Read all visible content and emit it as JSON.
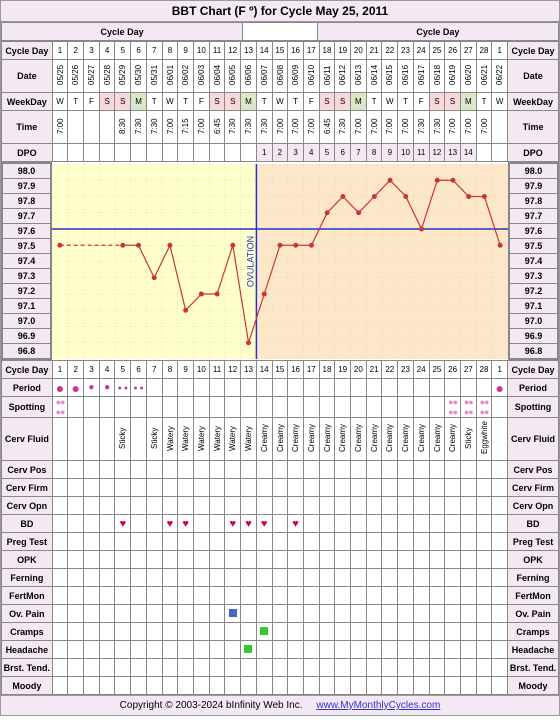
{
  "title": "BBT Chart (F º) for Cycle May 25, 2011",
  "labels": {
    "cycleDay": "Cycle Day",
    "date": "Date",
    "weekday": "WeekDay",
    "time": "Time",
    "dpo": "DPO",
    "period": "Period",
    "spotting": "Spotting",
    "cervFluid": "Cerv Fluid",
    "cervPos": "Cerv Pos",
    "cervFirm": "Cerv Firm",
    "cervOpn": "Cerv Opn",
    "bd": "BD",
    "pregTest": "Preg Test",
    "opk": "OPK",
    "ferning": "Ferning",
    "fertMon": "FertMon",
    "ovPain": "Ov. Pain",
    "cramps": "Cramps",
    "headache": "Headache",
    "brstTend": "Brst. Tend.",
    "moody": "Moody"
  },
  "cycleDays": [
    1,
    2,
    3,
    4,
    5,
    6,
    7,
    8,
    9,
    10,
    11,
    12,
    13,
    14,
    15,
    16,
    17,
    18,
    19,
    20,
    21,
    22,
    23,
    24,
    25,
    26,
    27,
    28,
    1
  ],
  "dates": [
    "05/25",
    "05/26",
    "05/27",
    "05/28",
    "05/29",
    "05/30",
    "05/31",
    "06/01",
    "06/02",
    "06/03",
    "06/04",
    "06/05",
    "06/06",
    "06/07",
    "06/08",
    "06/09",
    "06/10",
    "06/11",
    "06/12",
    "06/13",
    "06/14",
    "06/15",
    "06/16",
    "06/17",
    "06/18",
    "06/19",
    "06/20",
    "06/21",
    "06/22"
  ],
  "weekdays": [
    "W",
    "T",
    "F",
    "S",
    "S",
    "M",
    "T",
    "W",
    "T",
    "F",
    "S",
    "S",
    "M",
    "T",
    "W",
    "T",
    "F",
    "S",
    "S",
    "M",
    "T",
    "W",
    "T",
    "F",
    "S",
    "S",
    "M",
    "T",
    "W"
  ],
  "times": [
    "7:00",
    "",
    "",
    "",
    "8:30",
    "7:30",
    "7:30",
    "7:00",
    "7:15",
    "7:00",
    "6:45",
    "7:30",
    "7:30",
    "7:30",
    "7:00",
    "7:00",
    "7:00",
    "6:45",
    "7:30",
    "7:00",
    "7:00",
    "7:00",
    "7:00",
    "7:30",
    "7:30",
    "7:00",
    "7:00",
    "7:00",
    ""
  ],
  "dpo": [
    "",
    "",
    "",
    "",
    "",
    "",
    "",
    "",
    "",
    "",
    "",
    "",
    "",
    "1",
    "2",
    "3",
    "4",
    "5",
    "6",
    "7",
    "8",
    "9",
    "10",
    "11",
    "12",
    "13",
    "14",
    "",
    ""
  ],
  "tempScale": [
    "98.0",
    "97.9",
    "97.8",
    "97.7",
    "97.6",
    "97.5",
    "97.4",
    "97.3",
    "97.2",
    "97.1",
    "97.0",
    "96.9",
    "96.8"
  ],
  "temps": [
    97.5,
    null,
    null,
    null,
    97.5,
    97.5,
    97.3,
    97.5,
    97.1,
    97.2,
    97.2,
    97.5,
    96.9,
    97.2,
    97.5,
    97.5,
    97.5,
    97.7,
    97.8,
    97.7,
    97.8,
    97.9,
    97.8,
    97.6,
    97.9,
    97.9,
    97.8,
    97.8,
    97.5
  ],
  "chart": {
    "ovulationDay": 13,
    "coverline": 97.6,
    "lutealShade": "#fce8c8",
    "preShade": "#ffffcc",
    "lineColor": "#cc3333",
    "pointColor": "#cc3333",
    "gridColor": "#cccccc",
    "ovLineColor": "#2233cc",
    "coverLineColor": "#2233cc",
    "bgColor": "#ffffff",
    "tempMin": 96.8,
    "tempMax": 98.0
  },
  "period": [
    "lg",
    "lg",
    "md",
    "md",
    "sm",
    "sm",
    "",
    "",
    "",
    "",
    "",
    "",
    "",
    "",
    "",
    "",
    "",
    "",
    "",
    "",
    "",
    "",
    "",
    "",
    "",
    "",
    "",
    "",
    "lg"
  ],
  "spotting": [
    "s",
    "",
    "",
    "",
    "",
    "",
    "",
    "",
    "",
    "",
    "",
    "",
    "",
    "",
    "",
    "",
    "",
    "",
    "",
    "",
    "",
    "",
    "",
    "",
    "",
    "s",
    "s",
    "s",
    ""
  ],
  "cervFluid": [
    "",
    "",
    "",
    "",
    "Sticky",
    "",
    "Sticky",
    "Watery",
    "Watery",
    "Watery",
    "Watery",
    "Watery",
    "Watery",
    "Creamy",
    "Creamy",
    "Creamy",
    "Creamy",
    "Creamy",
    "Creamy",
    "Creamy",
    "Creamy",
    "Creamy",
    "Creamy",
    "Creamy",
    "Creamy",
    "Creamy",
    "Sticky",
    "Eggwhite",
    ""
  ],
  "bd": [
    "",
    "",
    "",
    "",
    "h",
    "",
    "",
    "h",
    "h",
    "",
    "",
    "h",
    "h",
    "h",
    "",
    "h",
    "",
    "",
    "",
    "",
    "",
    "",
    "",
    "",
    "",
    "",
    "",
    "",
    ""
  ],
  "ovPain": [
    "",
    "",
    "",
    "",
    "",
    "",
    "",
    "",
    "",
    "",
    "",
    "b",
    "",
    "",
    "",
    "",
    "",
    "",
    "",
    "",
    "",
    "",
    "",
    "",
    "",
    "",
    "",
    "",
    ""
  ],
  "cramps": [
    "",
    "",
    "",
    "",
    "",
    "",
    "",
    "",
    "",
    "",
    "",
    "",
    "",
    "g",
    "",
    "",
    "",
    "",
    "",
    "",
    "",
    "",
    "",
    "",
    "",
    "",
    "",
    "",
    ""
  ],
  "headache": [
    "",
    "",
    "",
    "",
    "",
    "",
    "",
    "",
    "",
    "",
    "",
    "",
    "g",
    "",
    "",
    "",
    "",
    "",
    "",
    "",
    "",
    "",
    "",
    "",
    "",
    "",
    "",
    "",
    ""
  ],
  "footer": {
    "copyright": "Copyright © 2003-2024 bInfinity Web Inc.",
    "link": "www.MyMonthlyCycles.com"
  }
}
